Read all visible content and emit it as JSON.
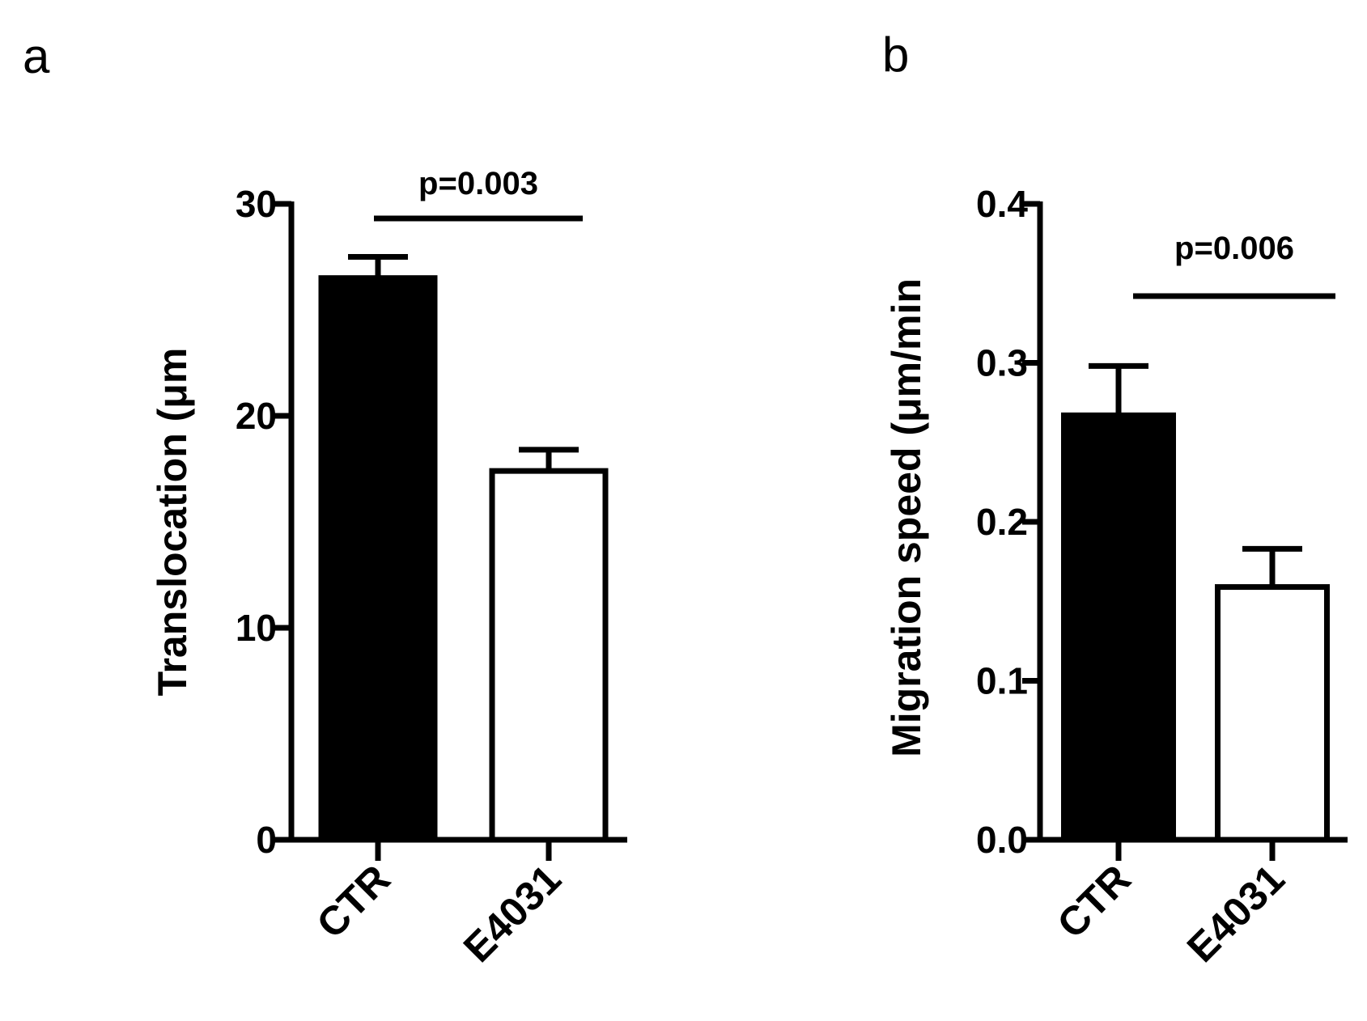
{
  "chart_data": [
    {
      "panel": "a",
      "type": "bar",
      "categories": [
        "CTR",
        "E4031"
      ],
      "values": [
        26.5,
        17.4
      ],
      "errors": [
        1.0,
        1.0
      ],
      "bar_fills": [
        "#000000",
        "#ffffff"
      ],
      "ylabel": "Translocation (μm",
      "ylim": [
        0,
        30
      ],
      "yticks": [
        "0",
        "10",
        "20",
        "30"
      ],
      "yticks_values": [
        0,
        10,
        20,
        30
      ],
      "significance": {
        "label": "p=0.003",
        "from": "CTR",
        "to": "E4031"
      }
    },
    {
      "panel": "b",
      "type": "bar",
      "categories": [
        "CTR",
        "E4031"
      ],
      "values": [
        0.267,
        0.159
      ],
      "errors": [
        0.031,
        0.024
      ],
      "bar_fills": [
        "#000000",
        "#ffffff"
      ],
      "ylabel": "Migration speed (μm/min",
      "ylim": [
        0,
        0.4
      ],
      "yticks": [
        "0.0",
        "0.1",
        "0.2",
        "0.3",
        "0.4"
      ],
      "yticks_values": [
        0,
        0.1,
        0.2,
        0.3,
        0.4
      ],
      "significance": {
        "label": "p=0.006",
        "from": "CTR",
        "to": "E4031"
      }
    }
  ]
}
